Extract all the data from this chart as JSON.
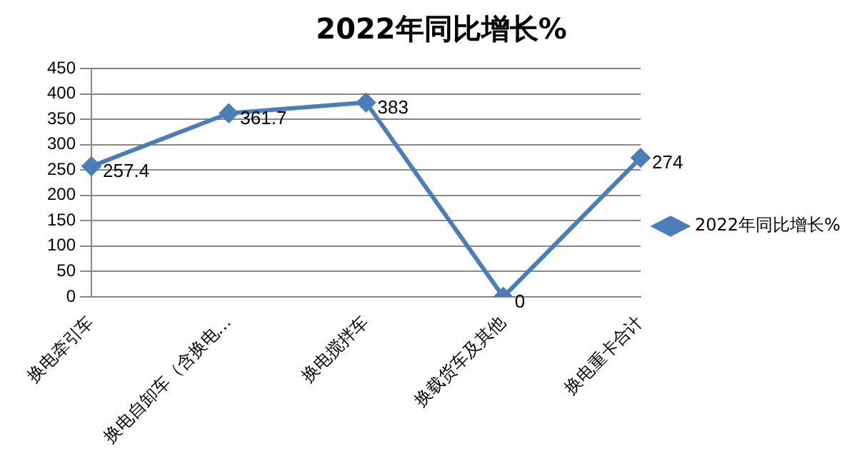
{
  "chart_data": {
    "type": "line",
    "title": "2022年同比增长%",
    "categories": [
      "换电牵引车",
      "换电自卸车（含换电…",
      "换电搅拌车",
      "换载货车及其他",
      "换电重卡合计"
    ],
    "series": [
      {
        "name": "2022年同比增长%",
        "color": "#4a7ebb",
        "values": [
          257.4,
          361.7,
          383,
          0,
          274
        ]
      }
    ],
    "ylim": [
      0,
      450
    ],
    "yticks": [
      0,
      50,
      100,
      150,
      200,
      250,
      300,
      350,
      400,
      450
    ],
    "grid": "y",
    "legend": "right",
    "marker": "diamond",
    "line_style": "solid",
    "data_labels": true
  }
}
